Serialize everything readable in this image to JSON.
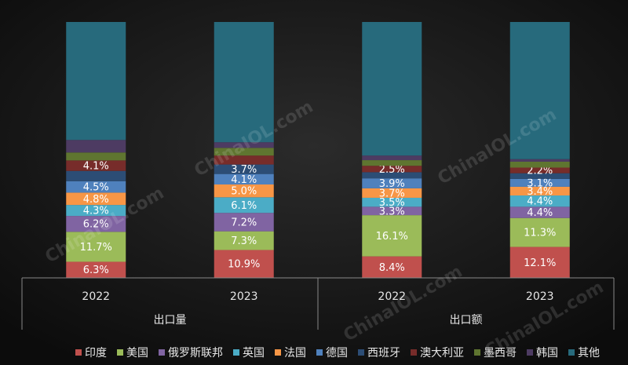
{
  "chart_data": {
    "type": "stacked-bar-100",
    "watermark": "ChinaIOL.com",
    "categories": [
      "2022",
      "2023",
      "2022",
      "2023"
    ],
    "groups": [
      {
        "label": "出口量",
        "span": 2
      },
      {
        "label": "出口额",
        "span": 2
      }
    ],
    "series": [
      {
        "name": "印度",
        "color": "#c0504d",
        "values": [
          6.3,
          10.9,
          8.4,
          12.1
        ],
        "value_labels": [
          "6.3%",
          "10.9%",
          "8.4%",
          "12.1%"
        ]
      },
      {
        "name": "美国",
        "color": "#9bbb59",
        "values": [
          11.7,
          7.3,
          16.1,
          11.3
        ],
        "value_labels": [
          "11.7%",
          "7.3%",
          "16.1%",
          "11.3%"
        ]
      },
      {
        "name": "俄罗斯联邦",
        "color": "#8064a2",
        "values": [
          6.2,
          7.2,
          3.3,
          4.4
        ],
        "value_labels": [
          "6.2%",
          "7.2%",
          "3.3%",
          "4.4%"
        ]
      },
      {
        "name": "英国",
        "color": "#4bacc6",
        "values": [
          4.3,
          6.1,
          3.5,
          4.4
        ],
        "value_labels": [
          "4.3%",
          "6.1%",
          "3.5%",
          "4.4%"
        ]
      },
      {
        "name": "法国",
        "color": "#f79646",
        "values": [
          4.8,
          5.0,
          3.7,
          3.4
        ],
        "value_labels": [
          "4.8%",
          "5.0%",
          "3.7%",
          "3.4%"
        ]
      },
      {
        "name": "德国",
        "color": "#4f81bd",
        "values": [
          4.5,
          4.1,
          3.9,
          3.1
        ],
        "value_labels": [
          "4.5%",
          "4.1%",
          "3.9%",
          "3.1%"
        ]
      },
      {
        "name": "西班牙",
        "color": "#2c4d75",
        "values": [
          4.0,
          3.7,
          2.4,
          2.2
        ],
        "value_labels": [
          null,
          "3.7%",
          null,
          null
        ]
      },
      {
        "name": "澳大利亚",
        "color": "#772c2a",
        "values": [
          4.1,
          3.5,
          2.5,
          2.2
        ],
        "value_labels": [
          "4.1%",
          null,
          "2.5%",
          "2.2%"
        ]
      },
      {
        "name": "墨西哥",
        "color": "#5f7530",
        "values": [
          3.1,
          3.0,
          2.2,
          2.3
        ],
        "value_labels": [
          null,
          null,
          null,
          null
        ]
      },
      {
        "name": "韩国",
        "color": "#4d3b62",
        "values": [
          4.9,
          2.2,
          1.8,
          1.0
        ],
        "value_labels": [
          null,
          null,
          null,
          null
        ]
      },
      {
        "name": "其他",
        "color": "#276a7c",
        "values": [
          46.1,
          47.0,
          52.2,
          53.6
        ],
        "value_labels": [
          null,
          null,
          null,
          null
        ]
      }
    ]
  }
}
